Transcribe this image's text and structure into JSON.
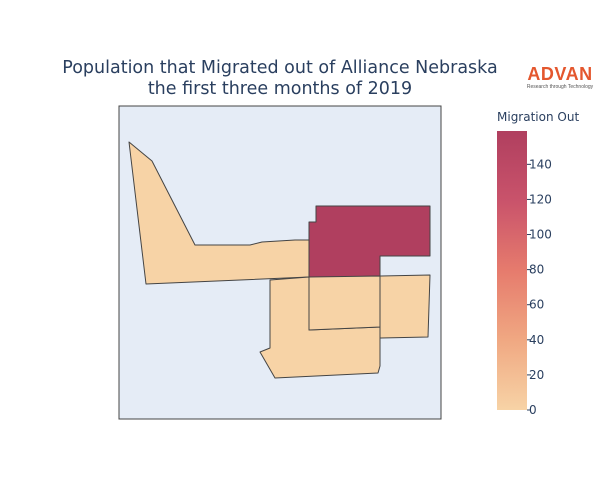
{
  "chart": {
    "title_line1": "Population that Migrated out of Alliance Nebraska",
    "title_line2": "the first three months of 2019",
    "background_color": "#e5ecf6"
  },
  "logo": {
    "word": "ADVAN",
    "tagline": "Research through Technology",
    "color": "#e4572e"
  },
  "colorbar": {
    "title": "Migration Out",
    "ticks": [
      "0",
      "20",
      "40",
      "60",
      "80",
      "100",
      "120",
      "140"
    ],
    "min": 0,
    "max": 159,
    "colors": [
      "#f7d3a6",
      "#f0a882",
      "#e67b6d",
      "#c9536b",
      "#b03f5f"
    ]
  },
  "chart_data": {
    "type": "choropleth",
    "value_label": "Migration Out",
    "regions": [
      {
        "name": "region-northwest",
        "value": 0
      },
      {
        "name": "region-northeast",
        "value": 159
      },
      {
        "name": "region-center",
        "value": 0
      },
      {
        "name": "region-east",
        "value": 0
      },
      {
        "name": "region-south",
        "value": 0
      }
    ]
  }
}
